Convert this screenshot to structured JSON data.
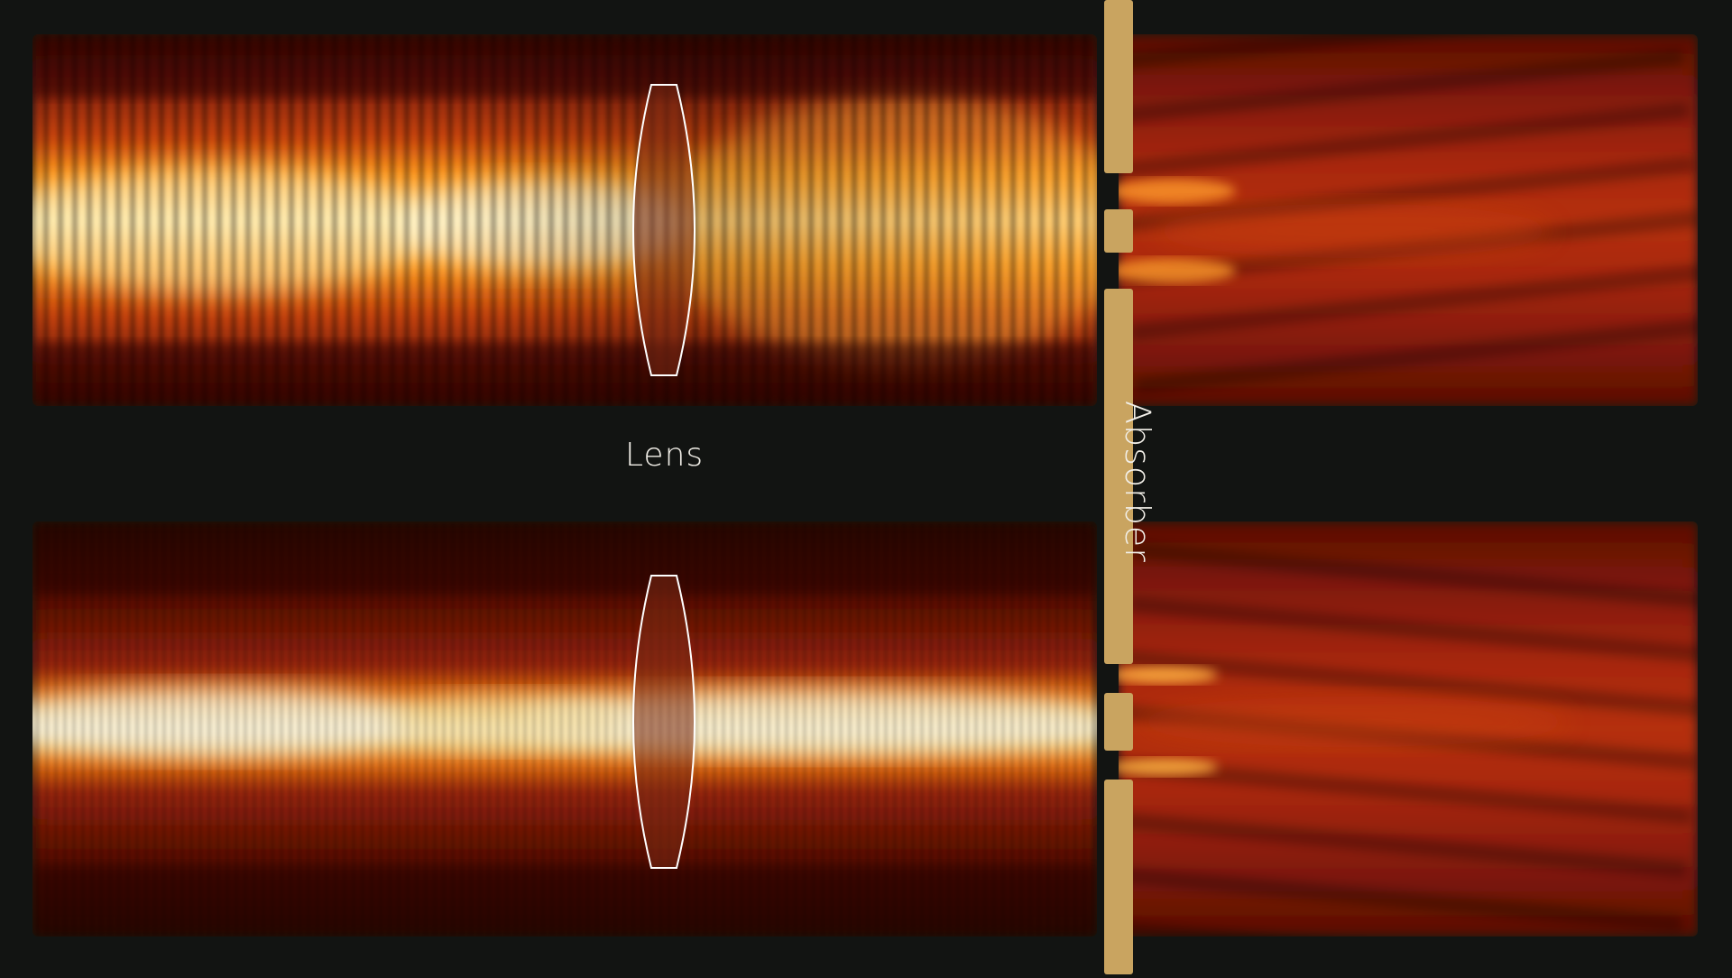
{
  "labels": {
    "lens": "Lens",
    "absorber": "Absorber"
  },
  "colors": {
    "background": "#121412",
    "absorber": "#c9a460",
    "lens_outline": "#ffffff",
    "field_low": "#4a0a04",
    "field_mid": "#b8300a",
    "field_high": "#ff9a1e",
    "field_peak": "#fff6c8"
  },
  "panels": [
    {
      "id": "top",
      "description_key": "wave-field-top"
    },
    {
      "id": "bottom",
      "description_key": "wave-field-bottom"
    }
  ]
}
